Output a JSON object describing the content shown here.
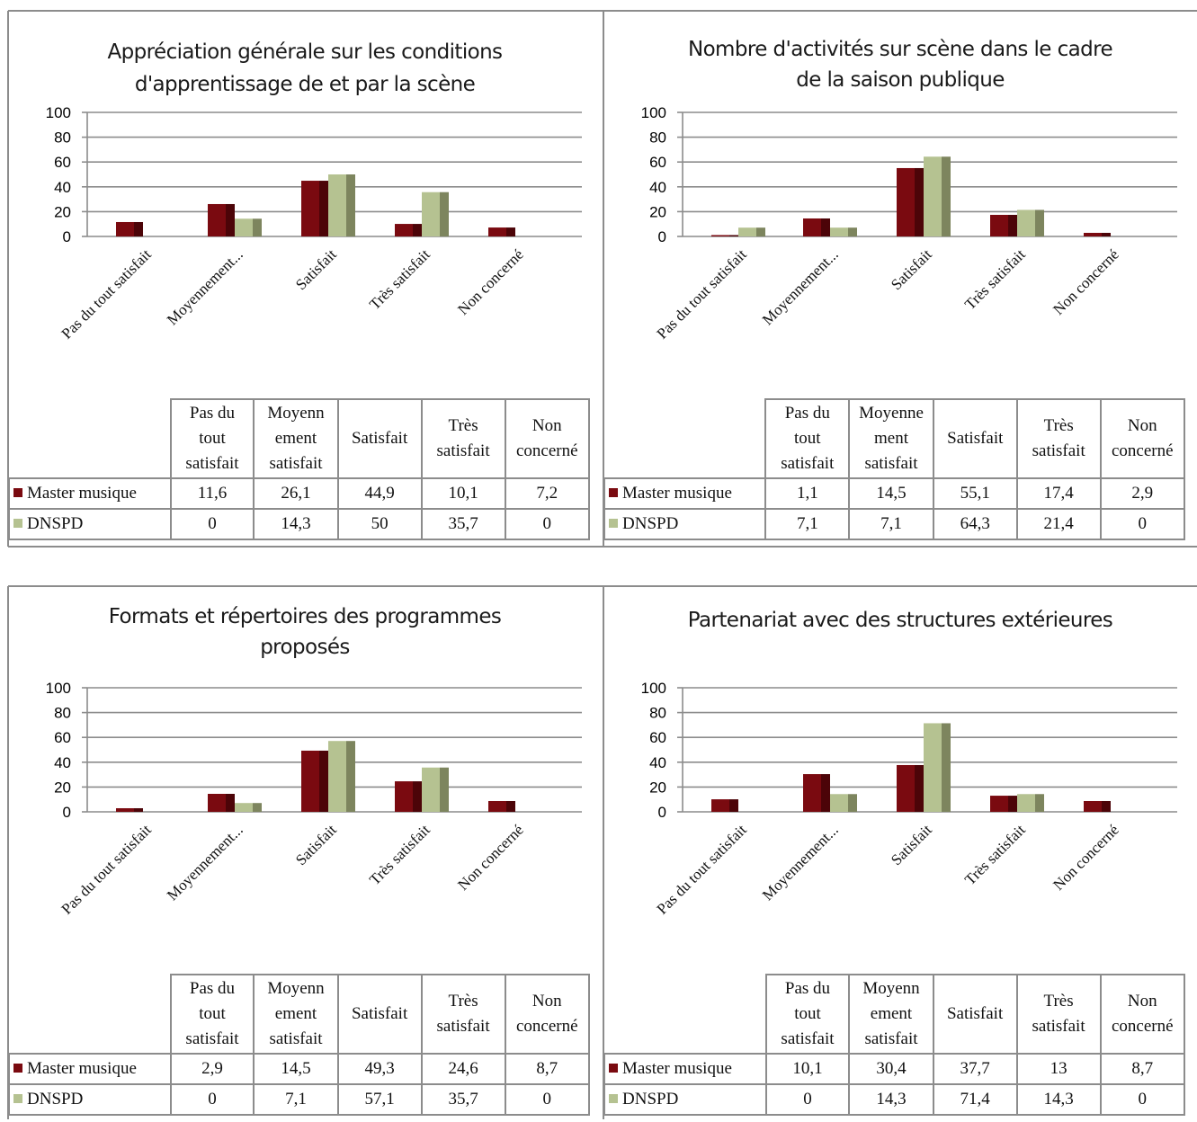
{
  "colors": {
    "master": "#7a0a10",
    "master_side": "#4c0408",
    "dnspd": "#b5c291",
    "dnspd_side": "#7d855e",
    "grid": "#8c8c8c",
    "frame": "#8c8c8c"
  },
  "legend_swatches": {
    "master": "square",
    "dnspd": "square"
  },
  "table_headers": [
    [
      "Pas du",
      "tout",
      "satisfait"
    ],
    [
      "Moyenn",
      "ement",
      "satisfait"
    ],
    [
      "Satisfait"
    ],
    [
      "Très",
      "satisfait"
    ],
    [
      "Non",
      "concerné"
    ]
  ],
  "table_headers_alt": [
    [
      "Pas du",
      "tout",
      "satisfait"
    ],
    [
      "Moyenne",
      "ment",
      "satisfait"
    ],
    [
      "Satisfait"
    ],
    [
      "Très",
      "satisfait"
    ],
    [
      "Non",
      "concerné"
    ]
  ],
  "chart_data": [
    {
      "type": "bar",
      "title": [
        "Appréciation générale sur les conditions",
        "d'apprentissage de et par la scène"
      ],
      "categories": [
        "Pas du tout satisfait",
        "Moyennement...",
        "Satisfait",
        "Très satisfait",
        "Non concerné"
      ],
      "series": [
        {
          "name": "Master musique",
          "values": [
            "11,6",
            "26,1",
            "44,9",
            "10,1",
            "7,2"
          ]
        },
        {
          "name": "DNSPD",
          "values": [
            "0",
            "14,3",
            "50",
            "35,7",
            "0"
          ]
        }
      ],
      "yticks": [
        "0",
        "20",
        "40",
        "60",
        "80",
        "100"
      ],
      "ylim": [
        0,
        100
      ],
      "grid": true,
      "legend": "data table"
    },
    {
      "type": "bar",
      "title": [
        "Nombre d'activités sur scène dans le cadre",
        "de la saison publique"
      ],
      "categories": [
        "Pas du tout satisfait",
        "Moyennement...",
        "Satisfait",
        "Très satisfait",
        "Non concerné"
      ],
      "series": [
        {
          "name": "Master musique",
          "values": [
            "1,1",
            "14,5",
            "55,1",
            "17,4",
            "2,9"
          ]
        },
        {
          "name": "DNSPD",
          "values": [
            "7,1",
            "7,1",
            "64,3",
            "21,4",
            "0"
          ]
        }
      ],
      "yticks": [
        "0",
        "20",
        "40",
        "60",
        "80",
        "100"
      ],
      "ylim": [
        0,
        100
      ],
      "grid": true,
      "legend": "data table"
    },
    {
      "type": "bar",
      "title": [
        "Formats et répertoires des programmes",
        "proposés"
      ],
      "categories": [
        "Pas du tout satisfait",
        "Moyennement...",
        "Satisfait",
        "Très satisfait",
        "Non concerné"
      ],
      "series": [
        {
          "name": "Master musique",
          "values": [
            "2,9",
            "14,5",
            "49,3",
            "24,6",
            "8,7"
          ]
        },
        {
          "name": "DNSPD",
          "values": [
            "0",
            "7,1",
            "57,1",
            "35,7",
            "0"
          ]
        }
      ],
      "yticks": [
        "0",
        "20",
        "40",
        "60",
        "80",
        "100"
      ],
      "ylim": [
        0,
        100
      ],
      "grid": true,
      "legend": "data table"
    },
    {
      "type": "bar",
      "title": [
        "Partenariat avec des structures extérieures"
      ],
      "categories": [
        "Pas du tout satisfait",
        "Moyennement...",
        "Satisfait",
        "Très satisfait",
        "Non concerné"
      ],
      "series": [
        {
          "name": "Master musique",
          "values": [
            "10,1",
            "30,4",
            "37,7",
            "13",
            "8,7"
          ]
        },
        {
          "name": "DNSPD",
          "values": [
            "0",
            "14,3",
            "71,4",
            "14,3",
            "0"
          ]
        }
      ],
      "yticks": [
        "0",
        "20",
        "40",
        "60",
        "80",
        "100"
      ],
      "ylim": [
        0,
        100
      ],
      "grid": true,
      "legend": "data table"
    }
  ]
}
